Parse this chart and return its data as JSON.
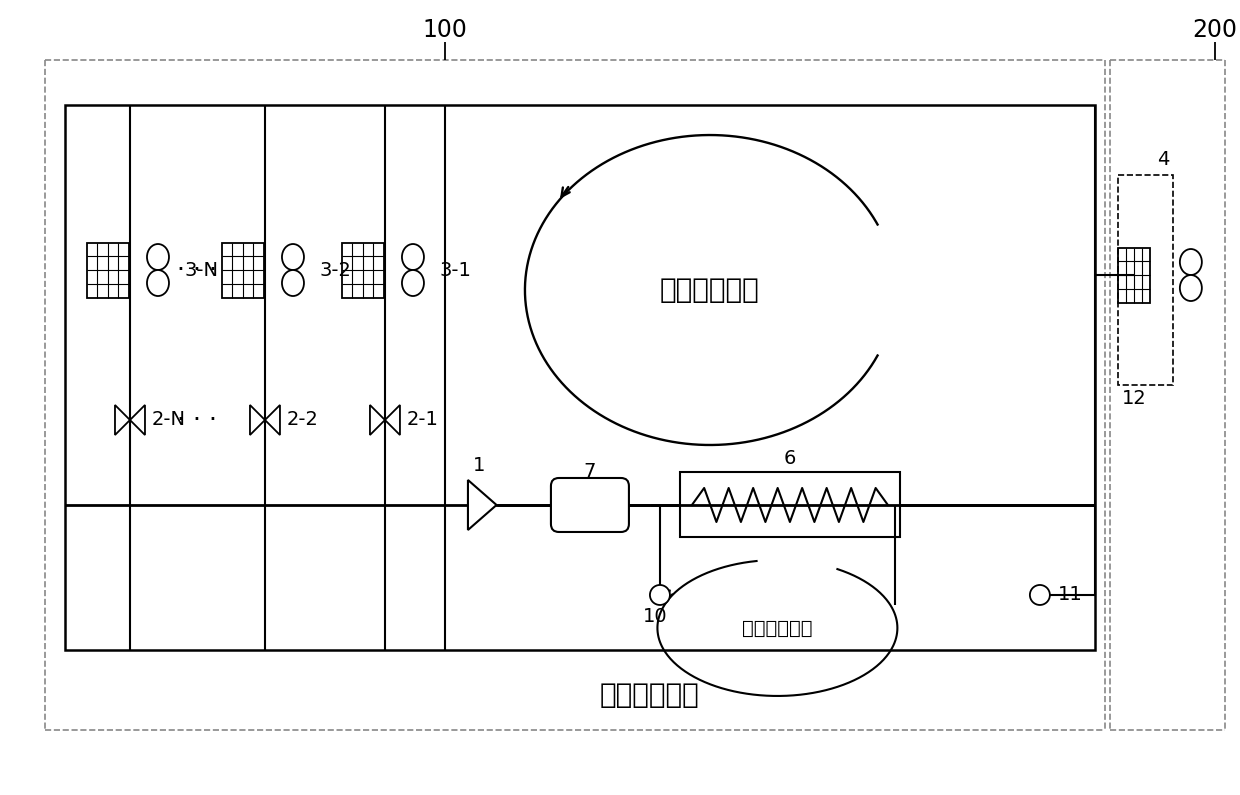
{
  "bg_color": "#ffffff",
  "line_color": "#000000",
  "dashed_color": "#888888",
  "title_100": "100",
  "title_200": "200",
  "label_1": "1",
  "label_4": "4",
  "label_6": "6",
  "label_7": "7",
  "label_10": "10",
  "label_11": "11",
  "label_12": "12",
  "label_3N": "3-N",
  "label_32": "3-2",
  "label_31": "3-1",
  "label_2N": "2-N",
  "label_22": "2-2",
  "label_21": "2-1",
  "text_heatpipe": "热管循环系统",
  "text_auxiliary": "辅助冷源系统",
  "text_external": "外接辅助冷源",
  "font_size_label": 14,
  "font_size_text": 20,
  "font_size_num": 17
}
